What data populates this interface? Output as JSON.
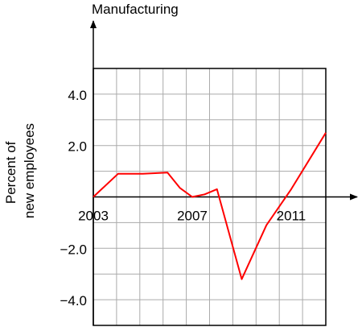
{
  "chart_data": {
    "type": "line",
    "title": "Manufacturing",
    "ylabel_lines": [
      "Percent of",
      "new employees"
    ],
    "xlabel": "",
    "xlim": [
      2003,
      2012.4
    ],
    "ylim": [
      -5.0,
      5.0
    ],
    "grid": true,
    "xticks": [
      {
        "value": 2003,
        "label": "2003"
      },
      {
        "value": 2007,
        "label": "2007"
      },
      {
        "value": 2011,
        "label": "2011"
      }
    ],
    "yticks": [
      {
        "value": 4.0,
        "label": "4.0"
      },
      {
        "value": 2.0,
        "label": "2.0"
      },
      {
        "value": -2.0,
        "label": "−2.0"
      },
      {
        "value": -4.0,
        "label": "−4.0"
      }
    ],
    "series": [
      {
        "color": "#ff0000",
        "points": [
          [
            2003.0,
            0.0
          ],
          [
            2004.0,
            0.9
          ],
          [
            2005.0,
            0.9
          ],
          [
            2006.0,
            0.95
          ],
          [
            2006.5,
            0.35
          ],
          [
            2007.0,
            0.0
          ],
          [
            2007.5,
            0.1
          ],
          [
            2008.0,
            0.3
          ],
          [
            2009.0,
            -3.2
          ],
          [
            2010.0,
            -1.1
          ],
          [
            2011.0,
            0.3
          ],
          [
            2012.4,
            2.5
          ]
        ]
      }
    ]
  }
}
